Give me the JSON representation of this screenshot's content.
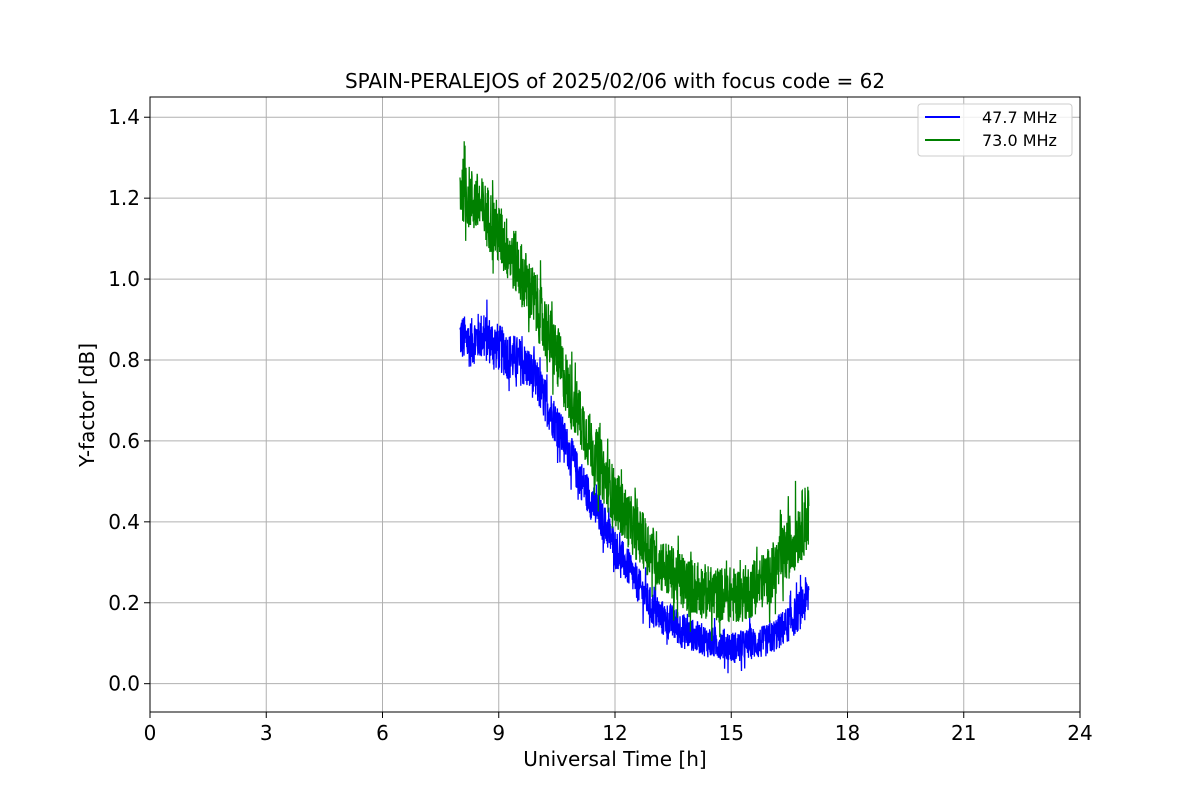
{
  "chart_data": {
    "type": "line",
    "title": "SPAIN-PERALEJOS of 2025/02/06 with focus code = 62",
    "xlabel": "Universal Time [h]",
    "ylabel": "Y-factor [dB]",
    "xlim": [
      0,
      24
    ],
    "ylim": [
      -0.07,
      1.45
    ],
    "xticks": [
      0,
      3,
      6,
      9,
      12,
      15,
      18,
      21,
      24
    ],
    "xtick_labels": [
      "0",
      "3",
      "6",
      "9",
      "12",
      "15",
      "18",
      "21",
      "24"
    ],
    "yticks": [
      0.0,
      0.2,
      0.4,
      0.6,
      0.8,
      1.0,
      1.2,
      1.4
    ],
    "ytick_labels": [
      "0.0",
      "0.2",
      "0.4",
      "0.6",
      "0.8",
      "1.0",
      "1.2",
      "1.4"
    ],
    "grid": true,
    "legend_position": "top-right",
    "series": [
      {
        "name": "47.7 MHz",
        "color": "#0000ff",
        "x": [
          8.0,
          8.25,
          8.5,
          8.75,
          9.0,
          9.25,
          9.5,
          9.75,
          10.0,
          10.25,
          10.5,
          10.75,
          11.0,
          11.25,
          11.5,
          11.75,
          12.0,
          12.25,
          12.5,
          12.75,
          13.0,
          13.25,
          13.5,
          13.75,
          14.0,
          14.25,
          14.5,
          14.75,
          15.0,
          15.25,
          15.5,
          15.75,
          16.0,
          16.25,
          16.5,
          16.75,
          17.0
        ],
        "y": [
          0.86,
          0.84,
          0.86,
          0.85,
          0.83,
          0.81,
          0.8,
          0.78,
          0.74,
          0.69,
          0.64,
          0.59,
          0.53,
          0.48,
          0.43,
          0.39,
          0.34,
          0.3,
          0.26,
          0.22,
          0.18,
          0.16,
          0.15,
          0.13,
          0.12,
          0.11,
          0.1,
          0.1,
          0.09,
          0.09,
          0.1,
          0.1,
          0.11,
          0.13,
          0.15,
          0.18,
          0.22
        ],
        "band": [
          0.12,
          0.12,
          0.12,
          0.12,
          0.12,
          0.12,
          0.12,
          0.11,
          0.11,
          0.11,
          0.11,
          0.1,
          0.1,
          0.1,
          0.1,
          0.1,
          0.09,
          0.09,
          0.09,
          0.09,
          0.09,
          0.09,
          0.09,
          0.09,
          0.08,
          0.08,
          0.08,
          0.08,
          0.08,
          0.08,
          0.08,
          0.08,
          0.08,
          0.09,
          0.09,
          0.1,
          0.12
        ]
      },
      {
        "name": "73.0 MHz",
        "color": "#008000",
        "x": [
          8.0,
          8.25,
          8.5,
          8.75,
          9.0,
          9.25,
          9.5,
          9.75,
          10.0,
          10.25,
          10.5,
          10.75,
          11.0,
          11.25,
          11.5,
          11.75,
          12.0,
          12.25,
          12.5,
          12.75,
          13.0,
          13.25,
          13.5,
          13.75,
          14.0,
          14.25,
          14.5,
          14.75,
          15.0,
          15.25,
          15.5,
          15.75,
          16.0,
          16.25,
          16.5,
          16.75,
          17.0
        ],
        "y": [
          1.23,
          1.2,
          1.18,
          1.15,
          1.11,
          1.07,
          1.03,
          0.98,
          0.93,
          0.87,
          0.81,
          0.74,
          0.68,
          0.62,
          0.56,
          0.51,
          0.46,
          0.42,
          0.38,
          0.35,
          0.32,
          0.29,
          0.27,
          0.25,
          0.24,
          0.23,
          0.22,
          0.22,
          0.22,
          0.22,
          0.23,
          0.25,
          0.27,
          0.3,
          0.34,
          0.38,
          0.42
        ],
        "band": [
          0.16,
          0.16,
          0.16,
          0.16,
          0.16,
          0.16,
          0.16,
          0.16,
          0.16,
          0.16,
          0.16,
          0.16,
          0.15,
          0.15,
          0.15,
          0.15,
          0.14,
          0.14,
          0.14,
          0.14,
          0.14,
          0.14,
          0.14,
          0.14,
          0.14,
          0.14,
          0.14,
          0.14,
          0.14,
          0.14,
          0.14,
          0.14,
          0.14,
          0.15,
          0.16,
          0.17,
          0.18
        ]
      }
    ]
  }
}
